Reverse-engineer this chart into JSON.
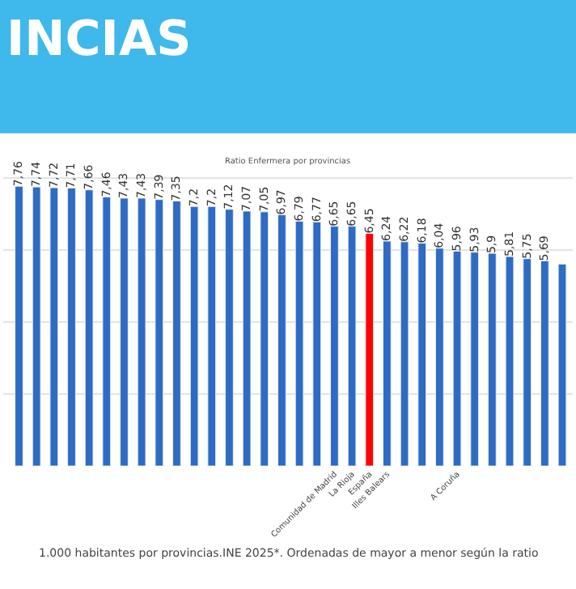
{
  "chart_data": {
    "type": "bar",
    "title": "INCIAS",
    "subtitle": "Ratio Enfermera por provincias",
    "categories": [
      null,
      null,
      null,
      null,
      null,
      null,
      null,
      null,
      null,
      null,
      null,
      null,
      null,
      null,
      null,
      null,
      null,
      null,
      "Comunidad de Madrid",
      "La Rioja",
      "España",
      "Illes Balears",
      null,
      null,
      null,
      "A Coruña",
      null,
      null,
      null,
      null,
      null,
      null
    ],
    "values": [
      7.76,
      7.74,
      7.72,
      7.71,
      7.66,
      7.46,
      7.43,
      7.43,
      7.39,
      7.35,
      7.2,
      7.2,
      7.12,
      7.07,
      7.05,
      6.97,
      6.79,
      6.77,
      6.65,
      6.65,
      6.45,
      6.24,
      6.22,
      6.18,
      6.04,
      5.96,
      5.93,
      5.9,
      5.81,
      5.75,
      5.69,
      5.6
    ],
    "value_labels": [
      "7,76",
      "7,74",
      "7,72",
      "7,71",
      "7,66",
      "7,46",
      "7,43",
      "7,43",
      "7,39",
      "7,35",
      "7,2",
      "7,2",
      "7,12",
      "7,07",
      "7,05",
      "6,97",
      "6,79",
      "6,77",
      "6,65",
      "6,65",
      "6,45",
      "6,24",
      "6,22",
      "6,18",
      "6,04",
      "5,96",
      "5,93",
      "5,9",
      "5,81",
      "5,75",
      "5,69",
      null
    ],
    "colors": [
      "#2e6bc4",
      "#2e6bc4",
      "#2e6bc4",
      "#2e6bc4",
      "#2e6bc4",
      "#2e6bc4",
      "#2e6bc4",
      "#2e6bc4",
      "#2e6bc4",
      "#2e6bc4",
      "#2e6bc4",
      "#2e6bc4",
      "#2e6bc4",
      "#2e6bc4",
      "#2e6bc4",
      "#2e6bc4",
      "#2e6bc4",
      "#2e6bc4",
      "#2e6bc4",
      "#2e6bc4",
      "#ff0000",
      "#2e6bc4",
      "#2e6bc4",
      "#2e6bc4",
      "#2e6bc4",
      "#2e6bc4",
      "#2e6bc4",
      "#2e6bc4",
      "#2e6bc4",
      "#2e6bc4",
      "#2e6bc4",
      "#2e6bc4"
    ],
    "tick_labels": "x",
    "grid": "y",
    "legend": false,
    "annotations": [
      "1.000 habitantes por provincias.INE 2025*. Ordenadas de mayor a menor según la ratio"
    ]
  }
}
